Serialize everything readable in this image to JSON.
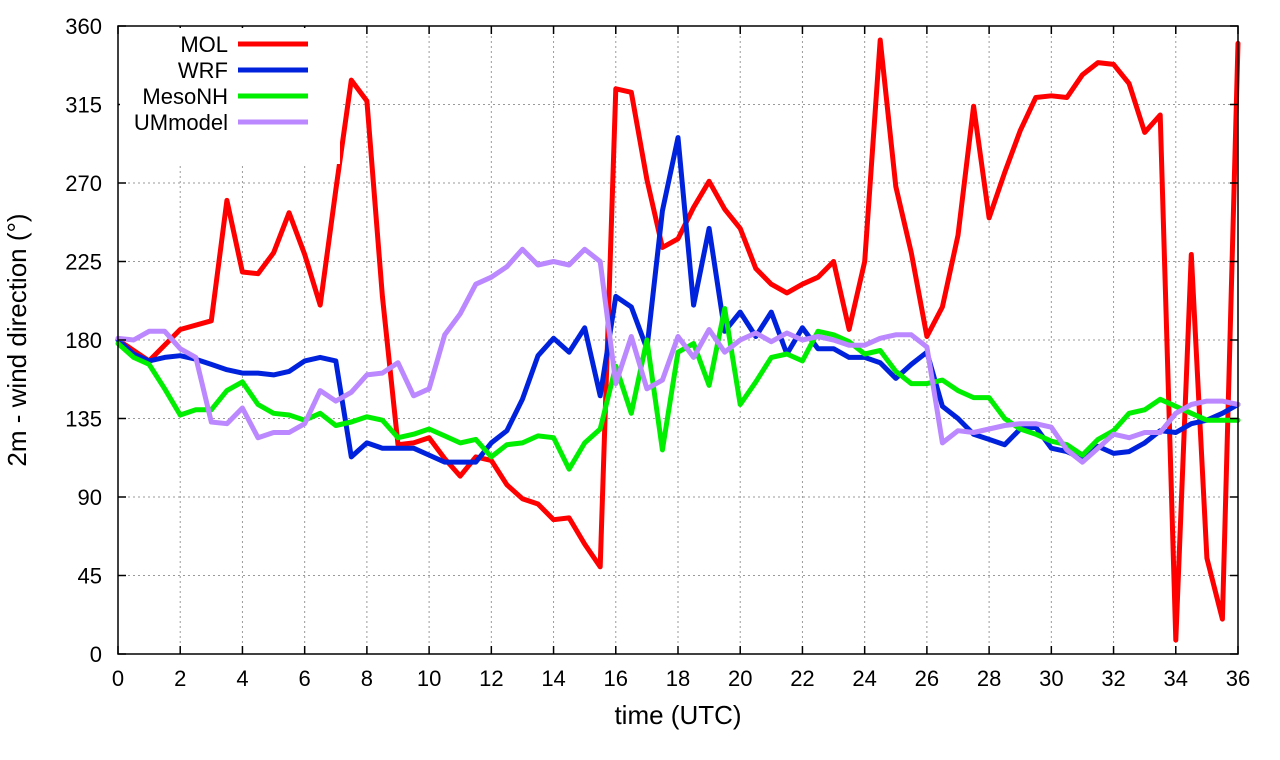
{
  "chart_data": {
    "type": "line",
    "title": "",
    "xlabel": "time (UTC)",
    "ylabel": "2m - wind direction (°)",
    "xlim": [
      0,
      36
    ],
    "ylim": [
      0,
      360
    ],
    "xticks": [
      0,
      2,
      4,
      6,
      8,
      10,
      12,
      14,
      16,
      18,
      20,
      22,
      24,
      26,
      28,
      30,
      32,
      34,
      36
    ],
    "yticks": [
      0,
      45,
      90,
      135,
      180,
      225,
      270,
      315,
      360
    ],
    "grid": true,
    "legend_position": "top-left",
    "series": [
      {
        "name": "MOL",
        "color": "#ff0000",
        "points": [
          [
            0,
            180
          ],
          [
            1,
            168
          ],
          [
            2,
            186
          ],
          [
            3,
            191
          ],
          [
            3.5,
            260
          ],
          [
            4,
            219
          ],
          [
            4.5,
            218
          ],
          [
            5,
            230
          ],
          [
            5.5,
            253
          ],
          [
            6,
            229
          ],
          [
            6.5,
            200
          ],
          [
            7,
            266
          ],
          [
            7.5,
            329
          ],
          [
            8,
            317
          ],
          [
            8.5,
            205
          ],
          [
            9,
            120
          ],
          [
            9.5,
            121
          ],
          [
            10,
            124
          ],
          [
            10.5,
            112
          ],
          [
            11,
            102
          ],
          [
            11.5,
            113
          ],
          [
            12,
            111
          ],
          [
            12.5,
            97
          ],
          [
            13,
            89
          ],
          [
            13.5,
            86
          ],
          [
            14,
            77
          ],
          [
            14.5,
            78
          ],
          [
            15,
            63
          ],
          [
            15.5,
            50
          ],
          [
            16,
            324
          ],
          [
            16.5,
            322
          ],
          [
            17,
            272
          ],
          [
            17.5,
            233
          ],
          [
            18,
            238
          ],
          [
            18.5,
            256
          ],
          [
            19,
            271
          ],
          [
            19.5,
            255
          ],
          [
            20,
            244
          ],
          [
            20.5,
            221
          ],
          [
            21,
            212
          ],
          [
            21.5,
            207
          ],
          [
            22,
            212
          ],
          [
            22.5,
            216
          ],
          [
            23,
            225
          ],
          [
            23.5,
            186
          ],
          [
            24,
            225
          ],
          [
            24.5,
            352
          ],
          [
            25,
            268
          ],
          [
            25.5,
            230
          ],
          [
            26,
            182
          ],
          [
            26.5,
            199
          ],
          [
            27,
            240
          ],
          [
            27.5,
            314
          ],
          [
            28,
            250
          ],
          [
            28.5,
            276
          ],
          [
            29,
            300
          ],
          [
            29.5,
            319
          ],
          [
            30,
            320
          ],
          [
            30.5,
            319
          ],
          [
            31,
            332
          ],
          [
            31.5,
            339
          ],
          [
            32,
            338
          ],
          [
            32.5,
            327
          ],
          [
            33,
            299
          ],
          [
            33.5,
            309
          ],
          [
            34,
            8
          ],
          [
            34.5,
            229
          ],
          [
            35,
            55
          ],
          [
            35.5,
            20
          ],
          [
            36,
            350
          ]
        ]
      },
      {
        "name": "WRF",
        "color": "#0022dd",
        "points": [
          [
            0,
            180
          ],
          [
            0.5,
            172
          ],
          [
            1,
            168
          ],
          [
            1.5,
            170
          ],
          [
            2,
            171
          ],
          [
            2.5,
            169
          ],
          [
            3,
            166
          ],
          [
            3.5,
            163
          ],
          [
            4,
            161
          ],
          [
            4.5,
            161
          ],
          [
            5,
            160
          ],
          [
            5.5,
            162
          ],
          [
            6,
            168
          ],
          [
            6.5,
            170
          ],
          [
            7,
            168
          ],
          [
            7.5,
            113
          ],
          [
            8,
            121
          ],
          [
            8.5,
            118
          ],
          [
            9,
            118
          ],
          [
            9.5,
            118
          ],
          [
            10,
            114
          ],
          [
            10.5,
            110
          ],
          [
            11,
            110
          ],
          [
            11.5,
            110
          ],
          [
            12,
            121
          ],
          [
            12.5,
            128
          ],
          [
            13,
            146
          ],
          [
            13.5,
            171
          ],
          [
            14,
            181
          ],
          [
            14.5,
            173
          ],
          [
            15,
            187
          ],
          [
            15.5,
            148
          ],
          [
            16,
            205
          ],
          [
            16.5,
            199
          ],
          [
            17,
            175
          ],
          [
            17.5,
            254
          ],
          [
            18,
            296
          ],
          [
            18.5,
            200
          ],
          [
            19,
            244
          ],
          [
            19.5,
            185
          ],
          [
            20,
            196
          ],
          [
            20.5,
            182
          ],
          [
            21,
            196
          ],
          [
            21.5,
            172
          ],
          [
            22,
            187
          ],
          [
            22.5,
            175
          ],
          [
            23,
            175
          ],
          [
            23.5,
            170
          ],
          [
            24,
            170
          ],
          [
            24.5,
            167
          ],
          [
            25,
            158
          ],
          [
            25.5,
            166
          ],
          [
            26,
            173
          ],
          [
            26.5,
            142
          ],
          [
            27,
            135
          ],
          [
            27.5,
            126
          ],
          [
            28,
            123
          ],
          [
            28.5,
            120
          ],
          [
            29,
            129
          ],
          [
            29.5,
            130
          ],
          [
            30,
            118
          ],
          [
            30.5,
            116
          ],
          [
            31,
            112
          ],
          [
            31.5,
            119
          ],
          [
            32,
            115
          ],
          [
            32.5,
            116
          ],
          [
            33,
            121
          ],
          [
            33.5,
            128
          ],
          [
            34,
            127
          ],
          [
            34.5,
            132
          ],
          [
            35,
            134
          ],
          [
            35.5,
            138
          ],
          [
            36,
            143
          ]
        ]
      },
      {
        "name": "MesoNH",
        "color": "#00ee00",
        "points": [
          [
            0,
            178
          ],
          [
            0.5,
            170
          ],
          [
            1,
            166
          ],
          [
            1.5,
            152
          ],
          [
            2,
            137
          ],
          [
            2.5,
            140
          ],
          [
            3,
            140
          ],
          [
            3.5,
            151
          ],
          [
            4,
            156
          ],
          [
            4.5,
            143
          ],
          [
            5,
            138
          ],
          [
            5.5,
            137
          ],
          [
            6,
            134
          ],
          [
            6.5,
            138
          ],
          [
            7,
            131
          ],
          [
            7.5,
            133
          ],
          [
            8,
            136
          ],
          [
            8.5,
            134
          ],
          [
            9,
            124
          ],
          [
            9.5,
            126
          ],
          [
            10,
            129
          ],
          [
            10.5,
            125
          ],
          [
            11,
            121
          ],
          [
            11.5,
            123
          ],
          [
            12,
            113
          ],
          [
            12.5,
            120
          ],
          [
            13,
            121
          ],
          [
            13.5,
            125
          ],
          [
            14,
            124
          ],
          [
            14.5,
            106
          ],
          [
            15,
            121
          ],
          [
            15.5,
            129
          ],
          [
            16,
            165
          ],
          [
            16.5,
            138
          ],
          [
            17,
            180
          ],
          [
            17.5,
            117
          ],
          [
            18,
            173
          ],
          [
            18.5,
            178
          ],
          [
            19,
            154
          ],
          [
            19.5,
            198
          ],
          [
            20,
            143
          ],
          [
            20.5,
            156
          ],
          [
            21,
            170
          ],
          [
            21.5,
            172
          ],
          [
            22,
            168
          ],
          [
            22.5,
            185
          ],
          [
            23,
            183
          ],
          [
            23.5,
            179
          ],
          [
            24,
            172
          ],
          [
            24.5,
            174
          ],
          [
            25,
            162
          ],
          [
            25.5,
            155
          ],
          [
            26,
            155
          ],
          [
            26.5,
            157
          ],
          [
            27,
            151
          ],
          [
            27.5,
            147
          ],
          [
            28,
            147
          ],
          [
            28.5,
            135
          ],
          [
            29,
            129
          ],
          [
            29.5,
            126
          ],
          [
            30,
            122
          ],
          [
            30.5,
            120
          ],
          [
            31,
            114
          ],
          [
            31.5,
            123
          ],
          [
            32,
            128
          ],
          [
            32.5,
            138
          ],
          [
            33,
            140
          ],
          [
            33.5,
            146
          ],
          [
            34,
            142
          ],
          [
            34.5,
            138
          ],
          [
            35,
            134
          ],
          [
            35.5,
            134
          ],
          [
            36,
            134
          ]
        ]
      },
      {
        "name": "UMmodel",
        "color": "#bb88ff",
        "points": [
          [
            0,
            181
          ],
          [
            0.5,
            180
          ],
          [
            1,
            185
          ],
          [
            1.5,
            185
          ],
          [
            2,
            175
          ],
          [
            2.5,
            170
          ],
          [
            3,
            133
          ],
          [
            3.5,
            132
          ],
          [
            4,
            141
          ],
          [
            4.5,
            124
          ],
          [
            5,
            127
          ],
          [
            5.5,
            127
          ],
          [
            6,
            132
          ],
          [
            6.5,
            151
          ],
          [
            7,
            145
          ],
          [
            7.5,
            150
          ],
          [
            8,
            160
          ],
          [
            8.5,
            161
          ],
          [
            9,
            167
          ],
          [
            9.5,
            148
          ],
          [
            10,
            152
          ],
          [
            10.5,
            183
          ],
          [
            11,
            195
          ],
          [
            11.5,
            212
          ],
          [
            12,
            216
          ],
          [
            12.5,
            222
          ],
          [
            13,
            232
          ],
          [
            13.5,
            223
          ],
          [
            14,
            225
          ],
          [
            14.5,
            223
          ],
          [
            15,
            232
          ],
          [
            15.5,
            225
          ],
          [
            16,
            155
          ],
          [
            16.5,
            182
          ],
          [
            17,
            152
          ],
          [
            17.5,
            157
          ],
          [
            18,
            182
          ],
          [
            18.5,
            170
          ],
          [
            19,
            186
          ],
          [
            19.5,
            173
          ],
          [
            20,
            180
          ],
          [
            20.5,
            184
          ],
          [
            21,
            179
          ],
          [
            21.5,
            184
          ],
          [
            22,
            180
          ],
          [
            22.5,
            182
          ],
          [
            23,
            180
          ],
          [
            23.5,
            177
          ],
          [
            24,
            177
          ],
          [
            24.5,
            181
          ],
          [
            25,
            183
          ],
          [
            25.5,
            183
          ],
          [
            26,
            176
          ],
          [
            26.5,
            121
          ],
          [
            27,
            128
          ],
          [
            27.5,
            127
          ],
          [
            28,
            129
          ],
          [
            28.5,
            131
          ],
          [
            29,
            132
          ],
          [
            29.5,
            132
          ],
          [
            30,
            130
          ],
          [
            30.5,
            117
          ],
          [
            31,
            110
          ],
          [
            31.5,
            118
          ],
          [
            32,
            126
          ],
          [
            32.5,
            124
          ],
          [
            33,
            127
          ],
          [
            33.5,
            127
          ],
          [
            34,
            138
          ],
          [
            34.5,
            143
          ],
          [
            35,
            145
          ],
          [
            35.5,
            145
          ],
          [
            36,
            143
          ]
        ]
      }
    ]
  }
}
